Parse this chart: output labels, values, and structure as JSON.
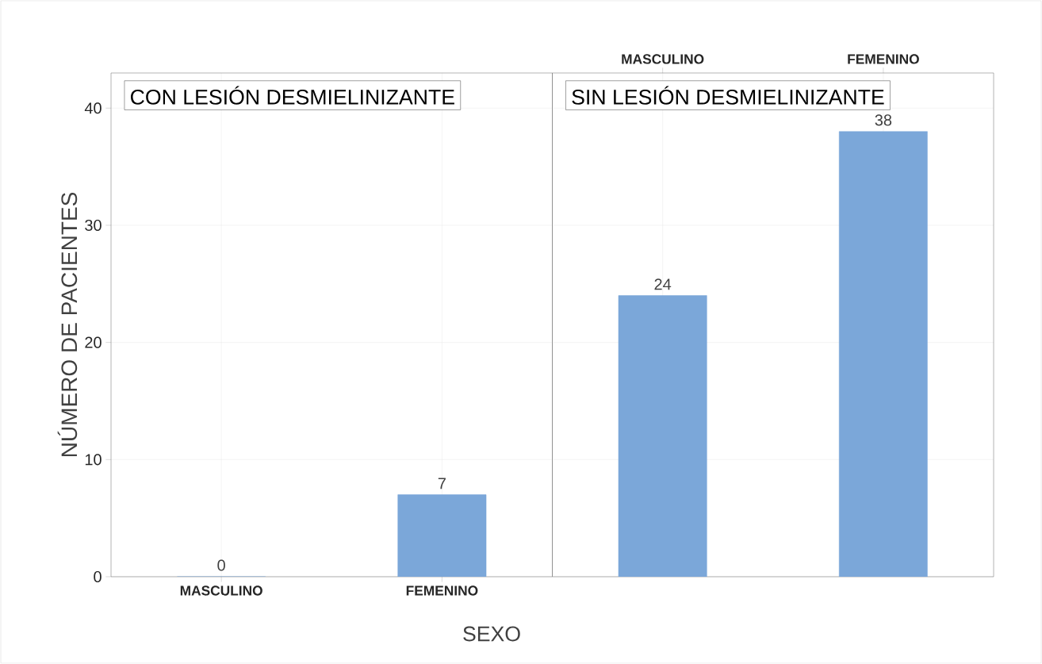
{
  "chart_data": [
    {
      "type": "bar",
      "title": "CON LESIÓN DESMIELINIZANTE",
      "categories": [
        "MASCULINO",
        "FEMENINO"
      ],
      "values": [
        0,
        7
      ],
      "color": "#7ba7d9",
      "ylim": [
        0,
        43
      ],
      "yticks": [
        0,
        10,
        20,
        30,
        40
      ],
      "ylabel": "NÚMERO DE PACIENTES",
      "xlabel": "SEXO",
      "grid": true,
      "data_labels": true
    },
    {
      "type": "bar",
      "title": "SIN LESIÓN DESMIELINIZANTE",
      "categories": [
        "MASCULINO",
        "FEMENINO"
      ],
      "values": [
        24,
        38
      ],
      "color": "#7ba7d9",
      "ylim": [
        0,
        43
      ],
      "yticks": [
        0,
        10,
        20,
        30,
        40
      ],
      "grid": true,
      "data_labels": true,
      "tick_labels": "x"
    }
  ]
}
